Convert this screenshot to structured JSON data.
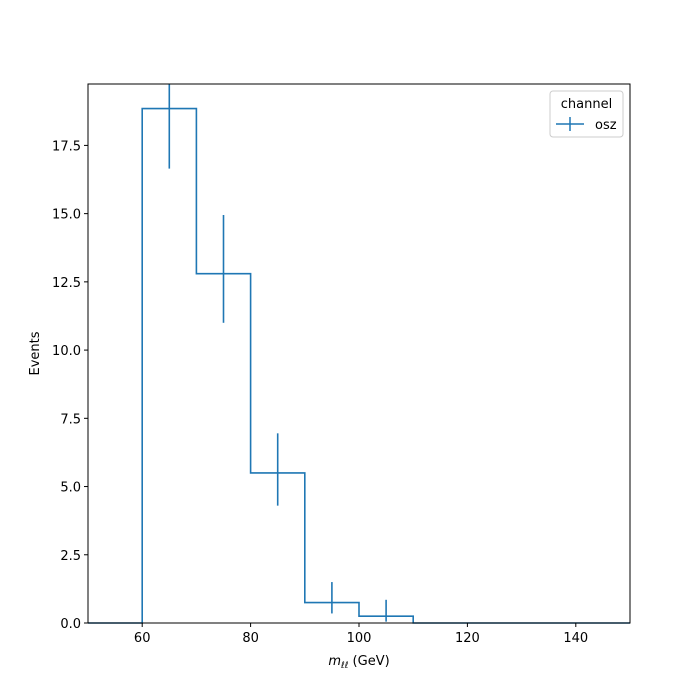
{
  "chart_data": {
    "type": "histogram",
    "xlabel": {
      "symbol": "m",
      "subscript": "ℓℓ",
      "unit": " (GeV)"
    },
    "ylabel": "Events",
    "xlim": [
      50,
      150
    ],
    "ylim": [
      0,
      19.75
    ],
    "xticks": [
      60,
      80,
      100,
      120,
      140
    ],
    "yticks": [
      0.0,
      2.5,
      5.0,
      7.5,
      10.0,
      12.5,
      15.0,
      17.5
    ],
    "ytick_labels": [
      "0.0",
      "2.5",
      "5.0",
      "7.5",
      "10.0",
      "12.5",
      "15.0",
      "17.5"
    ],
    "legend": {
      "title": "channel",
      "placement": "top-right"
    },
    "series": [
      {
        "name": "osz",
        "color": "#1f77b4",
        "bin_edges": [
          50,
          60,
          70,
          80,
          90,
          100,
          110,
          120,
          130,
          140,
          150
        ],
        "values": [
          0,
          18.85,
          12.8,
          5.5,
          0.75,
          0.25,
          0,
          0,
          0,
          0
        ],
        "errors": [
          {
            "x": 65,
            "low": 16.65,
            "high": 19.75
          },
          {
            "x": 75,
            "low": 11.0,
            "high": 14.95
          },
          {
            "x": 85,
            "low": 4.3,
            "high": 6.95
          },
          {
            "x": 95,
            "low": 0.35,
            "high": 1.5
          },
          {
            "x": 105,
            "low": 0.05,
            "high": 0.85
          }
        ]
      }
    ]
  }
}
